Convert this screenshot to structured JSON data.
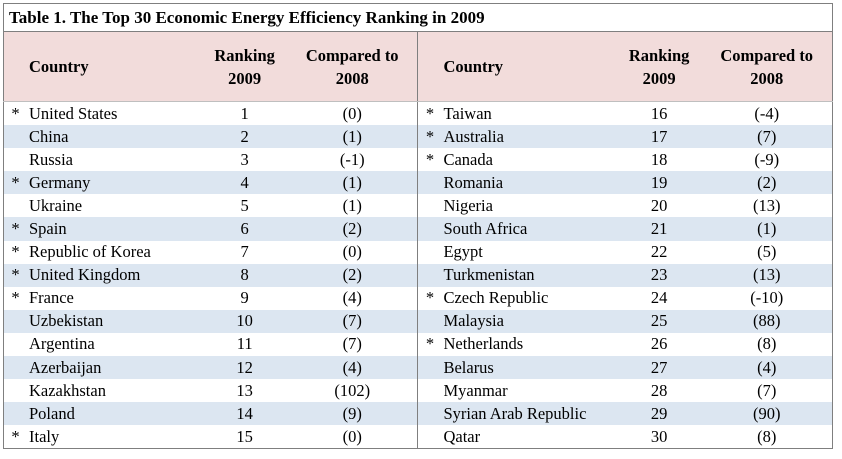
{
  "caption": "Table 1. The Top 30 Economic Energy Efficiency Ranking in 2009",
  "headers": {
    "country": "Country",
    "ranking_line1": "Ranking",
    "ranking_line2": "2009",
    "compared_line1": "Compared to",
    "compared_line2": "2008"
  },
  "left": [
    {
      "star": "*",
      "country": "United States",
      "rank": "1",
      "compared": "(0)"
    },
    {
      "star": "",
      "country": "China",
      "rank": "2",
      "compared": "(1)"
    },
    {
      "star": "",
      "country": "Russia",
      "rank": "3",
      "compared": "(-1)"
    },
    {
      "star": "*",
      "country": "Germany",
      "rank": "4",
      "compared": "(1)"
    },
    {
      "star": "",
      "country": "Ukraine",
      "rank": "5",
      "compared": "(1)"
    },
    {
      "star": "*",
      "country": "Spain",
      "rank": "6",
      "compared": "(2)"
    },
    {
      "star": "*",
      "country": "Republic of Korea",
      "rank": "7",
      "compared": "(0)"
    },
    {
      "star": "*",
      "country": "United Kingdom",
      "rank": "8",
      "compared": "(2)"
    },
    {
      "star": "*",
      "country": "France",
      "rank": "9",
      "compared": "(4)"
    },
    {
      "star": "",
      "country": "Uzbekistan",
      "rank": "10",
      "compared": "(7)"
    },
    {
      "star": "",
      "country": "Argentina",
      "rank": "11",
      "compared": "(7)"
    },
    {
      "star": "",
      "country": "Azerbaijan",
      "rank": "12",
      "compared": "(4)"
    },
    {
      "star": "",
      "country": "Kazakhstan",
      "rank": "13",
      "compared": "(102)"
    },
    {
      "star": "",
      "country": "Poland",
      "rank": "14",
      "compared": "(9)"
    },
    {
      "star": "*",
      "country": "Italy",
      "rank": "15",
      "compared": "(0)"
    }
  ],
  "right": [
    {
      "star": "*",
      "country": "Taiwan",
      "rank": "16",
      "compared": "(-4)"
    },
    {
      "star": "*",
      "country": "Australia",
      "rank": "17",
      "compared": "(7)"
    },
    {
      "star": "*",
      "country": "Canada",
      "rank": "18",
      "compared": "(-9)"
    },
    {
      "star": "",
      "country": "Romania",
      "rank": "19",
      "compared": "(2)"
    },
    {
      "star": "",
      "country": "Nigeria",
      "rank": "20",
      "compared": "(13)"
    },
    {
      "star": "",
      "country": "South Africa",
      "rank": "21",
      "compared": "(1)"
    },
    {
      "star": "",
      "country": "Egypt",
      "rank": "22",
      "compared": "(5)"
    },
    {
      "star": "",
      "country": "Turkmenistan",
      "rank": "23",
      "compared": "(13)"
    },
    {
      "star": "*",
      "country": "Czech Republic",
      "rank": "24",
      "compared": "(-10)"
    },
    {
      "star": "",
      "country": "Malaysia",
      "rank": "25",
      "compared": "(88)"
    },
    {
      "star": "*",
      "country": "Netherlands",
      "rank": "26",
      "compared": "(8)"
    },
    {
      "star": "",
      "country": "Belarus",
      "rank": "27",
      "compared": "(4)"
    },
    {
      "star": "",
      "country": "Myanmar",
      "rank": "28",
      "compared": "(7)"
    },
    {
      "star": "",
      "country": "Syrian Arab Republic",
      "rank": "29",
      "compared": "(90)"
    },
    {
      "star": "",
      "country": "Qatar",
      "rank": "30",
      "compared": "(8)"
    }
  ],
  "colors": {
    "header_bg": "#f2dcdb",
    "alt_row_bg": "#dce6f1",
    "border": "#7f7f7f"
  }
}
